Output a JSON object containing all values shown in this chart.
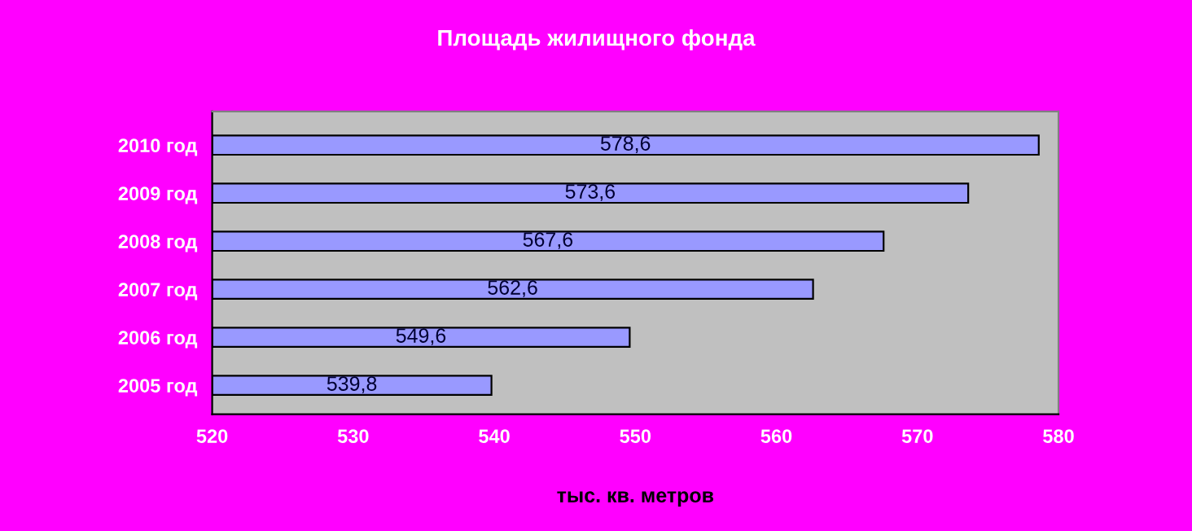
{
  "chart_data": {
    "type": "bar",
    "orientation": "horizontal",
    "title": "Площадь жилищного фонда",
    "xlabel": "тыс. кв. метров",
    "categories": [
      "2010 год",
      "2009 год",
      "2008 год",
      "2007 год",
      "2006 год",
      "2005 год"
    ],
    "values": [
      578.6,
      573.6,
      567.6,
      562.6,
      549.6,
      539.8
    ],
    "value_labels": [
      "578,6",
      "573,6",
      "567,6",
      "562,6",
      "549,6",
      "539,8"
    ],
    "color": "#9999ff",
    "xlim": [
      520,
      580
    ],
    "xticks": [
      520,
      530,
      540,
      550,
      560,
      570,
      580
    ],
    "grid": false
  }
}
